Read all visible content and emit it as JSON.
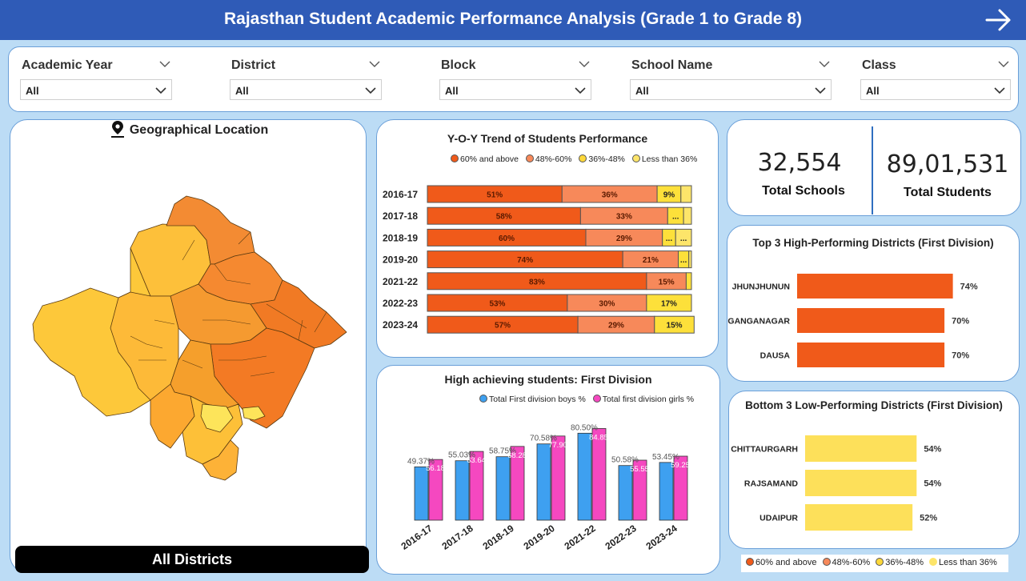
{
  "header": {
    "title": "Rajasthan Student Academic Performance Analysis (Grade 1 to Grade 8)"
  },
  "filters": [
    {
      "label": "Academic Year",
      "value": "All"
    },
    {
      "label": "District",
      "value": "All"
    },
    {
      "label": "Block",
      "value": "All"
    },
    {
      "label": "School Name",
      "value": "All"
    },
    {
      "label": "Class",
      "value": "All"
    }
  ],
  "map": {
    "title": "Geographical Location",
    "selection_label": "All Districts"
  },
  "kpis": {
    "schools_value": "32,554",
    "schools_label": "Total Schools",
    "students_value": "89,01,531",
    "students_label": "Total Students"
  },
  "colors": {
    "c60": "#f05a1a",
    "c48": "#f7895a",
    "c36": "#fde03a",
    "cless": "#fde56a",
    "boys": "#3ea0f0",
    "girls": "#f548c0",
    "header": "#2f5bb7"
  },
  "legend_categories": [
    "60% and above",
    "48%-60%",
    "36%-48%",
    "Less than 36%"
  ],
  "chart_data": [
    {
      "type": "bar",
      "orientation": "horizontal-stacked-100",
      "title": "Y-O-Y Trend of Students Performance",
      "categories": [
        "2016-17",
        "2017-18",
        "2018-19",
        "2019-20",
        "2021-22",
        "2022-23",
        "2023-24"
      ],
      "series": [
        {
          "name": "60% and above",
          "values": [
            51,
            58,
            60,
            74,
            83,
            53,
            57
          ],
          "labels": [
            "51%",
            "58%",
            "60%",
            "74%",
            "83%",
            "53%",
            "57%"
          ]
        },
        {
          "name": "48%-60%",
          "values": [
            36,
            33,
            29,
            21,
            15,
            30,
            29
          ],
          "labels": [
            "36%",
            "33%",
            "29%",
            "21%",
            "15%",
            "30%",
            "29%"
          ]
        },
        {
          "name": "36%-48%",
          "values": [
            9,
            6,
            5,
            4,
            2,
            17,
            15
          ],
          "labels": [
            "9%",
            "...",
            "...",
            "...",
            "",
            "17%",
            "15%"
          ]
        },
        {
          "name": "Less than 36%",
          "values": [
            4,
            3,
            6,
            1,
            0,
            0,
            0
          ],
          "labels": [
            "",
            "",
            "...",
            "",
            "",
            "",
            ""
          ]
        }
      ],
      "legend": "top"
    },
    {
      "type": "bar",
      "title": "High achieving students: First Division",
      "categories": [
        "2016-17",
        "2017-18",
        "2018-19",
        "2019-20",
        "2021-22",
        "2022-23",
        "2023-24"
      ],
      "series": [
        {
          "name": "Total First division boys %",
          "values": [
            49.37,
            55.03,
            58.75,
            70.58,
            80.5,
            50.58,
            53.45
          ],
          "labels": [
            "49.37%",
            "55.03%",
            "58.75%",
            "70.58%",
            "80.50%",
            "50.58%",
            "53.45%"
          ]
        },
        {
          "name": "Total first division girls %",
          "values": [
            56.18,
            63.64,
            68.28,
            77.9,
            84.85,
            55.55,
            59.25
          ],
          "labels": [
            "56.18",
            "63.64",
            "68.28",
            "77.90",
            "84.85",
            "55.55",
            "59.25"
          ]
        }
      ],
      "legend": "top"
    },
    {
      "type": "bar",
      "orientation": "horizontal",
      "title": "Top 3 High-Performing Districts (First Division)",
      "categories": [
        "JHUNJHUNUN",
        "GANGANAGAR",
        "DAUSA"
      ],
      "values": [
        74,
        70,
        70
      ],
      "labels": [
        "74%",
        "70%",
        "70%"
      ]
    },
    {
      "type": "bar",
      "orientation": "horizontal",
      "title": "Bottom 3 Low-Performing Districts (First Division)",
      "categories": [
        "CHITTAURGARH",
        "RAJSAMAND",
        "UDAIPUR"
      ],
      "values": [
        54,
        54,
        52
      ],
      "labels": [
        "54%",
        "54%",
        "52%"
      ]
    }
  ]
}
